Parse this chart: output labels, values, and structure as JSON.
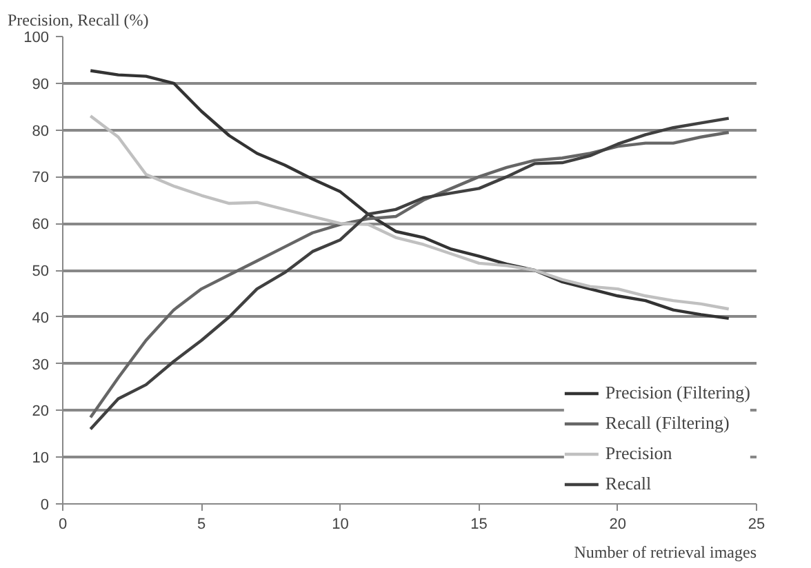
{
  "chart_data": {
    "type": "line",
    "xlabel": "Number of retrieval images",
    "ylabel": "Precision, Recall (%)",
    "x": [
      1,
      2,
      3,
      4,
      5,
      6,
      7,
      8,
      9,
      10,
      11,
      12,
      13,
      14,
      15,
      16,
      17,
      18,
      19,
      20,
      21,
      22,
      23,
      24
    ],
    "series": [
      {
        "name": "Precision (Filtering)",
        "color": "#333333",
        "values": [
          92.7,
          91.8,
          91.5,
          90,
          84,
          78.8,
          75,
          72.5,
          69.5,
          66.8,
          62,
          58.3,
          57,
          54.5,
          53,
          51.3,
          50,
          47.5,
          46,
          44.5,
          43.5,
          41.5,
          40.5,
          39.7
        ]
      },
      {
        "name": "Recall (Filtering)",
        "color": "#666666",
        "values": [
          18.5,
          27,
          35,
          41.5,
          46,
          49,
          52,
          55,
          58,
          59.8,
          61,
          61.5,
          65,
          67.5,
          70,
          72,
          73.5,
          74,
          75,
          76.5,
          77.2,
          77.2,
          78.5,
          79.5
        ]
      },
      {
        "name": "Precision",
        "color": "#c0c0c0",
        "values": [
          83,
          78.5,
          70.5,
          68,
          66,
          64.3,
          64.5,
          63,
          61.5,
          60,
          59.8,
          57,
          55.5,
          53.5,
          51.5,
          51,
          50,
          48,
          46.5,
          46,
          44.5,
          43.5,
          42.8,
          41.7
        ]
      },
      {
        "name": "Recall",
        "color": "#404040",
        "values": [
          16,
          22.5,
          25.5,
          30.5,
          35,
          40,
          46,
          49.5,
          54,
          56.5,
          62,
          63,
          65.5,
          66.5,
          67.5,
          70,
          72.8,
          73,
          74.5,
          77,
          79,
          80.5,
          81.5,
          82.5
        ]
      }
    ],
    "xlim": [
      0,
      25
    ],
    "xticks": [
      0,
      5,
      10,
      15,
      20,
      25
    ],
    "ylim": [
      0,
      100
    ],
    "yticks": [
      0,
      10,
      20,
      30,
      40,
      50,
      60,
      70,
      80,
      90,
      100
    ],
    "grid": "y",
    "legend": "bottom right",
    "line_style": "solid",
    "marker": "none"
  }
}
